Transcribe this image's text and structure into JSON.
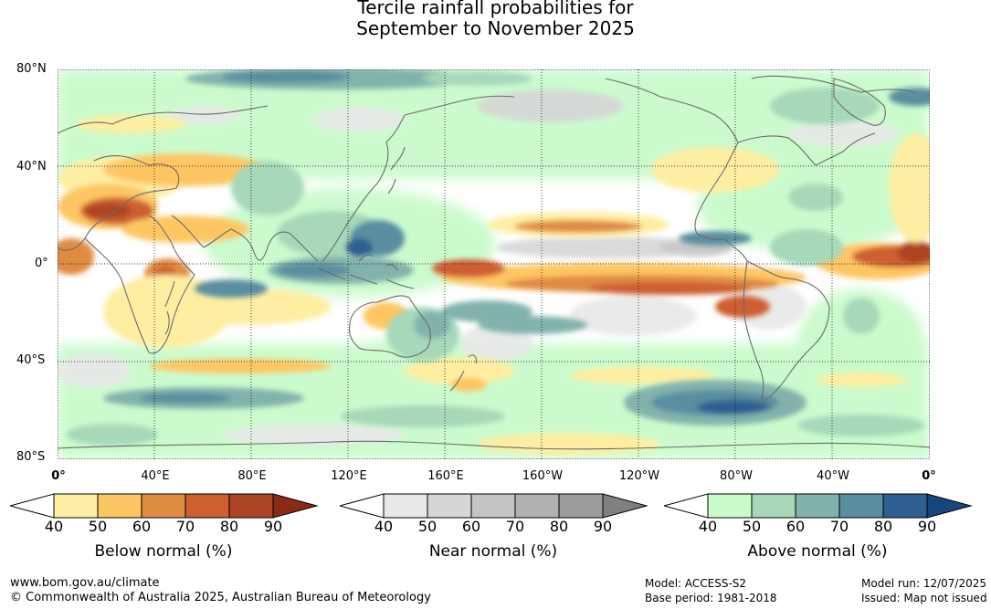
{
  "title": {
    "line1": "Tercile rainfall probabilities for",
    "line2": "September to November 2025"
  },
  "axes": {
    "lat_labels": [
      "80°N",
      "40°N",
      "0°",
      "40°S",
      "80°S"
    ],
    "lon_labels": [
      "0°",
      "40°E",
      "80°E",
      "120°E",
      "160°E",
      "160°W",
      "120°W",
      "80°W",
      "40°W",
      "0°"
    ]
  },
  "legend": {
    "ticks": [
      "40",
      "50",
      "60",
      "70",
      "80",
      "90"
    ],
    "below": {
      "title": "Below normal (%)",
      "colors": [
        "#ffffff",
        "#feeea2",
        "#fec663",
        "#e08b42",
        "#cd5f30",
        "#ad4424",
        "#8a2c14"
      ]
    },
    "near": {
      "title": "Near normal (%)",
      "colors": [
        "#ffffff",
        "#e8e8e8",
        "#d6d6d6",
        "#c4c4c4",
        "#b1b1b1",
        "#9c9c9c",
        "#808080"
      ]
    },
    "above": {
      "title": "Above normal (%)",
      "colors": [
        "#ffffff",
        "#c9fbcb",
        "#a6d8b9",
        "#82b2ac",
        "#5a8ea0",
        "#2e5e92",
        "#15467e"
      ]
    }
  },
  "footer": {
    "url": "www.bom.gov.au/climate",
    "copyright": "© Commonwealth of Australia 2025, Australian Bureau of Meteorology",
    "model": "Model: ACCESS-S2",
    "base_period": "Base period: 1981-2018",
    "model_run": "Model run: 12/07/2025",
    "issued": "Issued: Map not issued"
  }
}
